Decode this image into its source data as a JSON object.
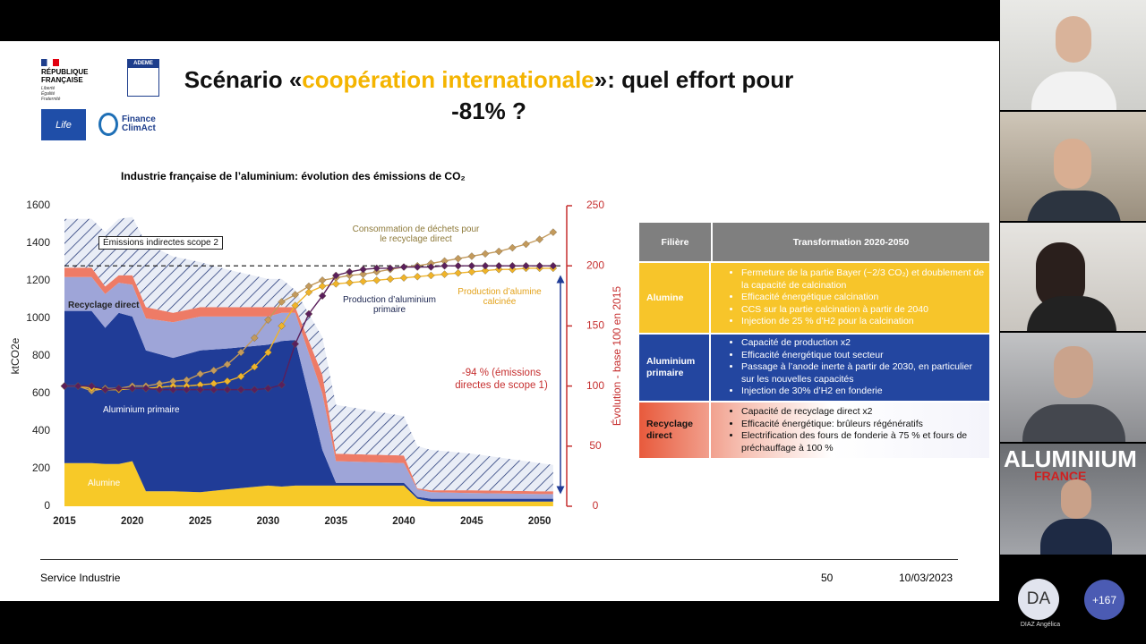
{
  "slide": {
    "logos": {
      "republique": "RÉPUBLIQUE FRANÇAISE",
      "devise": "Liberté Égalité Fraternité",
      "ademe": "ADEME",
      "life": "Life",
      "finance": "Finance ClimAct"
    },
    "title": {
      "before": "Scénario «",
      "highlight": "coopération internationale",
      "after": "»: quel effort pour -81% ?"
    },
    "footer": {
      "left": "Service Industrie",
      "page": 50,
      "date": "10/03/2023"
    }
  },
  "chart_data": {
    "type": "area",
    "title": "Industrie française de l’aluminium: évolution des émissions de CO₂",
    "ylabel": "ktCO2e",
    "y2label": "Évolution - base 100 en 2015",
    "x": [
      2015,
      2017,
      2018,
      2019,
      2020,
      2021,
      2023,
      2025,
      2027,
      2030,
      2031,
      2032,
      2034,
      2035,
      2040,
      2041,
      2042,
      2045,
      2050,
      2051
    ],
    "series": [
      {
        "name": "Alumine",
        "color": "#f7c928",
        "values": [
          230,
          230,
          225,
          225,
          240,
          80,
          80,
          75,
          90,
          110,
          105,
          110,
          110,
          110,
          110,
          40,
          25,
          25,
          25,
          25
        ]
      },
      {
        "name": "Aluminium primaire",
        "color": "#203c97",
        "values": [
          810,
          810,
          725,
          805,
          770,
          750,
          710,
          755,
          750,
          750,
          775,
          775,
          190,
          15,
          15,
          10,
          15,
          15,
          15,
          15
        ]
      },
      {
        "color": "#9ea5d8",
        "values": [
          180,
          180,
          180,
          160,
          170,
          170,
          190,
          180,
          170,
          150,
          150,
          145,
          300,
          115,
          105,
          40,
          35,
          30,
          25,
          25
        ]
      },
      {
        "name": "Recyclage direct",
        "color": "#ee7b66",
        "values": [
          50,
          50,
          40,
          40,
          50,
          60,
          50,
          50,
          50,
          50,
          30,
          30,
          100,
          40,
          40,
          5,
          10,
          15,
          15,
          15
        ]
      },
      {
        "name": "Émissions indirectes scope 2",
        "color": "#2b3f7c",
        "values": [
          260,
          260,
          290,
          300,
          310,
          340,
          300,
          240,
          200,
          150,
          150,
          90,
          200,
          260,
          210,
          225,
          215,
          195,
          150,
          140
        ]
      },
      {
        "name": "Consommation de déchets pour le recyclage direct",
        "color": "#c39a5c",
        "axis": "y2",
        "x": [
          2015,
          2016,
          2017,
          2018,
          2019,
          2020,
          2021,
          2022,
          2023,
          2024,
          2025,
          2026,
          2027,
          2028,
          2029,
          2030,
          2031,
          2032,
          2033,
          2034,
          2035,
          2036,
          2037,
          2038,
          2039,
          2040,
          2041,
          2042,
          2043,
          2044,
          2045,
          2046,
          2047,
          2048,
          2049,
          2050,
          2051
        ],
        "values": [
          100,
          100,
          96,
          98,
          98,
          100,
          100,
          102,
          104,
          105,
          110,
          113,
          118,
          128,
          140,
          155,
          170,
          176,
          183,
          188,
          190,
          192,
          193,
          195,
          197,
          199,
          200,
          202,
          204,
          206,
          208,
          210,
          212,
          215,
          218,
          222,
          228
        ]
      },
      {
        "name": "Production d’alumine calcinée",
        "color": "#f0b429",
        "axis": "y2",
        "x": [
          2015,
          2016,
          2017,
          2018,
          2019,
          2020,
          2021,
          2022,
          2023,
          2024,
          2025,
          2026,
          2027,
          2028,
          2029,
          2030,
          2031,
          2032,
          2033,
          2034,
          2035,
          2036,
          2037,
          2038,
          2039,
          2040,
          2041,
          2042,
          2043,
          2044,
          2045,
          2046,
          2047,
          2048,
          2049,
          2050,
          2051
        ],
        "values": [
          100,
          100,
          98,
          97,
          97,
          98,
          98,
          99,
          100,
          100,
          101,
          102,
          104,
          108,
          116,
          128,
          150,
          167,
          178,
          183,
          185,
          186,
          187,
          188,
          189,
          190,
          191,
          192,
          193,
          194,
          195,
          196,
          197,
          197,
          198,
          198,
          198
        ]
      },
      {
        "name": "Production d’aluminium primaire",
        "color": "#5a1f5c",
        "axis": "y2",
        "x": [
          2015,
          2016,
          2017,
          2018,
          2019,
          2020,
          2021,
          2022,
          2023,
          2024,
          2025,
          2026,
          2027,
          2028,
          2029,
          2030,
          2031,
          2032,
          2033,
          2034,
          2035,
          2036,
          2037,
          2038,
          2039,
          2040,
          2041,
          2042,
          2043,
          2044,
          2045,
          2046,
          2047,
          2048,
          2049,
          2050,
          2051
        ],
        "values": [
          100,
          100,
          100,
          97,
          98,
          98,
          98,
          97,
          97,
          97,
          97,
          97,
          97,
          97,
          97,
          98,
          101,
          135,
          160,
          175,
          192,
          195,
          197,
          198,
          198,
          199,
          199,
          199,
          200,
          200,
          200,
          200,
          200,
          200,
          200,
          200,
          200
        ]
      }
    ],
    "reference_y2": 200,
    "annotations": [
      "-94 % (émissions directes de scope 1)"
    ],
    "xlim": [
      2015,
      2052
    ],
    "xticks": [
      2015,
      2020,
      2025,
      2030,
      2035,
      2040,
      2045,
      2050
    ],
    "ylim": [
      0,
      1600
    ],
    "yticks": [
      0,
      200,
      400,
      600,
      800,
      1000,
      1200,
      1400,
      1600
    ],
    "y2lim": [
      0,
      250
    ],
    "y2ticks": [
      0,
      50,
      100,
      150,
      200,
      250
    ],
    "y2color": "#c62f2f"
  },
  "table": {
    "headers": [
      "Filière",
      "Transformation 2020-2050"
    ],
    "rows": [
      {
        "label": "Alumine",
        "items": [
          "Fermeture de la partie Bayer (~2/3 CO₂) et doublement de la capacité de calcination",
          "Efficacité énergétique calcination",
          "CCS sur la partie calcination à partir de 2040",
          "Injection de 25 % d’H2 pour la calcination"
        ]
      },
      {
        "label": "Aluminium primaire",
        "items": [
          "Capacité de production x2",
          "Efficacité énergétique tout secteur",
          "Passage à l’anode inerte à partir de 2030, en particulier sur les nouvelles capacités",
          "Injection de 30% d’H2 en fonderie"
        ]
      },
      {
        "label": "Recyclage direct",
        "items": [
          "Capacité de recyclage direct x2",
          "Efficacité énergétique: brûleurs régénératifs",
          "Electrification des fours de fonderie à 75 % et fours de préchauffage à 100 %"
        ]
      }
    ]
  },
  "call": {
    "banner": "ALUMINIUM",
    "banner_sub": "FRANCE",
    "initials": "DA",
    "name": "DIAZ Angélica",
    "more": "+167"
  }
}
